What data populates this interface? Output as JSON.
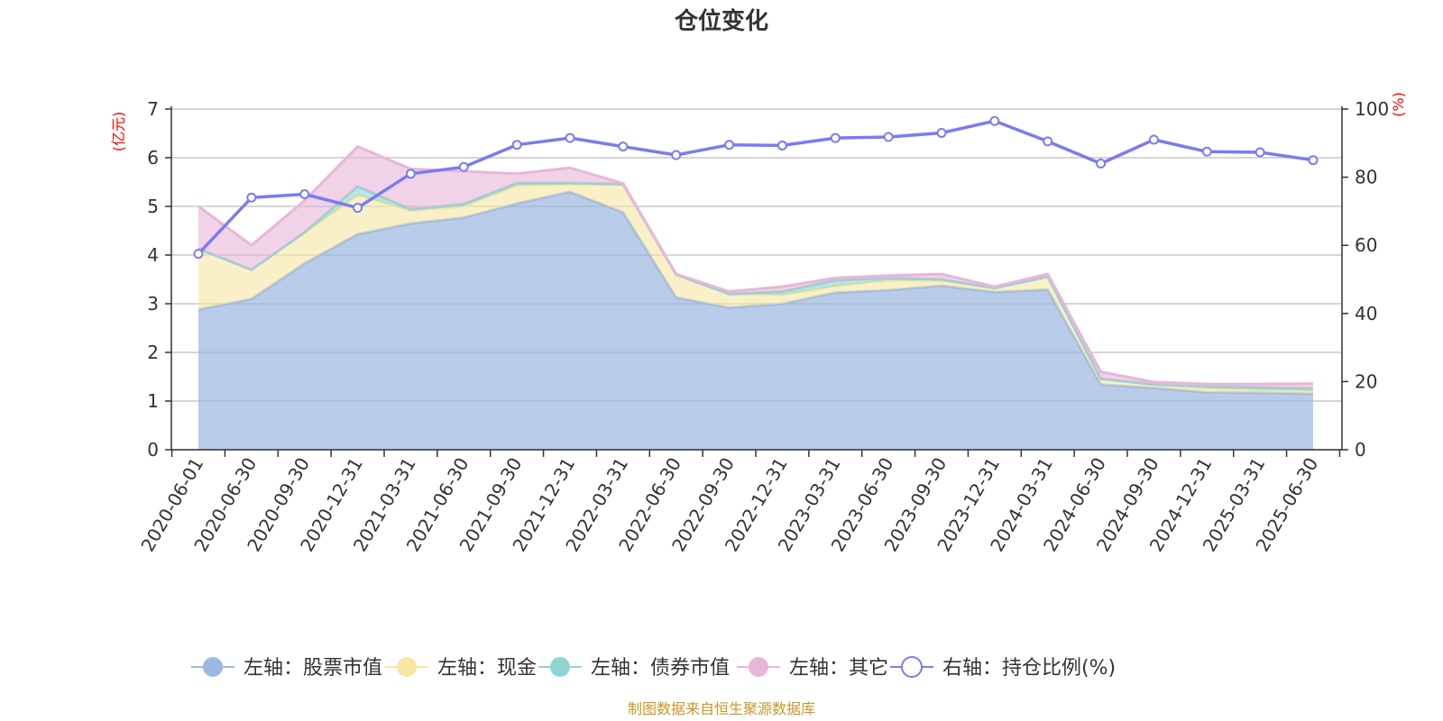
{
  "chart_data": {
    "type": "area",
    "title": "仓位变化",
    "categories": [
      "2020-06-01",
      "2020-06-30",
      "2020-09-30",
      "2020-12-31",
      "2021-03-31",
      "2021-06-30",
      "2021-09-30",
      "2021-12-31",
      "2022-03-31",
      "2022-06-30",
      "2022-09-30",
      "2022-12-31",
      "2023-03-31",
      "2023-06-30",
      "2023-09-30",
      "2023-12-31",
      "2024-03-31",
      "2024-06-30",
      "2024-09-30",
      "2024-12-31",
      "2025-03-31",
      "2025-06-30"
    ],
    "y_left": {
      "label": "(亿元)",
      "min": 0,
      "max": 7,
      "ticks": [
        0,
        1,
        2,
        3,
        4,
        5,
        6,
        7
      ]
    },
    "y_right": {
      "label": "(%)",
      "min": 0,
      "max": 100,
      "ticks": [
        0,
        20,
        40,
        60,
        80,
        100
      ]
    },
    "series": [
      {
        "name": "左轴：股票市值",
        "axis": "left",
        "stacked": true,
        "color": "#9db8e2",
        "values": [
          2.88,
          3.1,
          3.83,
          4.43,
          4.65,
          4.77,
          5.06,
          5.3,
          4.88,
          3.13,
          2.92,
          3.0,
          3.23,
          3.28,
          3.37,
          3.24,
          3.29,
          1.34,
          1.27,
          1.18,
          1.17,
          1.15
        ]
      },
      {
        "name": "左轴：现金",
        "axis": "left",
        "stacked": true,
        "color": "#f7e6a4",
        "values": [
          1.25,
          0.6,
          0.62,
          0.8,
          0.26,
          0.23,
          0.37,
          0.15,
          0.56,
          0.47,
          0.28,
          0.18,
          0.13,
          0.2,
          0.1,
          0.08,
          0.27,
          0.12,
          0.07,
          0.08,
          0.06,
          0.06
        ]
      },
      {
        "name": "左轴：债券市值",
        "axis": "left",
        "stacked": true,
        "color": "#90d4d4",
        "values": [
          0,
          0,
          0.02,
          0.18,
          0.03,
          0.05,
          0.05,
          0.03,
          0.02,
          0,
          0,
          0.07,
          0.12,
          0.05,
          0.03,
          0,
          0,
          0,
          0,
          0.04,
          0.05,
          0.05
        ]
      },
      {
        "name": "左轴：其它",
        "axis": "left",
        "stacked": true,
        "color": "#e8b6d8",
        "values": [
          0.87,
          0.5,
          0.65,
          0.82,
          0.83,
          0.67,
          0.19,
          0.31,
          0.01,
          0.01,
          0.05,
          0.1,
          0.05,
          0.05,
          0.11,
          0.03,
          0.05,
          0.14,
          0.05,
          0.05,
          0.07,
          0.1
        ]
      },
      {
        "name": "右轴：持仓比例(%)",
        "axis": "right",
        "type": "line",
        "color": "#7b7bf0",
        "values": [
          57.5,
          74.0,
          75.0,
          71.0,
          81.0,
          83.0,
          89.5,
          91.5,
          89.0,
          86.5,
          89.5,
          89.3,
          91.5,
          91.8,
          93.0,
          96.5,
          90.5,
          84.0,
          91.0,
          87.5,
          87.3,
          85.0
        ]
      }
    ],
    "legend_position": "bottom",
    "grid": true,
    "source": "制图数据来自恒生聚源数据库"
  }
}
